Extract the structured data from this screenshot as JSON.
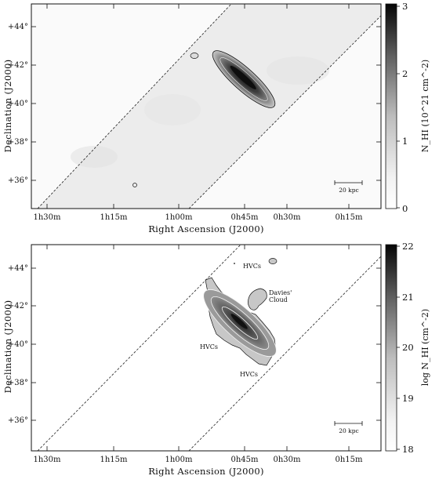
{
  "panels": [
    {
      "id": "top",
      "ylabel": "Declination (J2000)",
      "xlabel": "Right Ascension (J2000)",
      "yticks": [
        "+44°",
        "+42°",
        "+40°",
        "+38°",
        "+36°"
      ],
      "xticks": [
        "1h30m",
        "1h15m",
        "1h00m",
        "0h45m",
        "0h30m",
        "0h15m"
      ],
      "colorbar": {
        "label": "N_HI (10^21 cm^-2)",
        "ticks": [
          "3",
          "2",
          "1",
          "0"
        ]
      },
      "scale_bar": "20 kpc",
      "annotations": []
    },
    {
      "id": "bottom",
      "ylabel": "Declination (J2000)",
      "xlabel": "Right Ascension (J2000)",
      "yticks": [
        "+44°",
        "+42°",
        "+40°",
        "+38°",
        "+36°"
      ],
      "xticks": [
        "1h30m",
        "1h15m",
        "1h00m",
        "0h45m",
        "0h30m",
        "0h15m"
      ],
      "colorbar": {
        "label": "log N_HI (cm^-2)",
        "ticks": [
          "22",
          "21",
          "20",
          "19",
          "18"
        ]
      },
      "scale_bar": "20 kpc",
      "annotations": [
        "HVCs",
        "Davies' Cloud",
        "HVCs",
        "HVCs"
      ]
    }
  ]
}
